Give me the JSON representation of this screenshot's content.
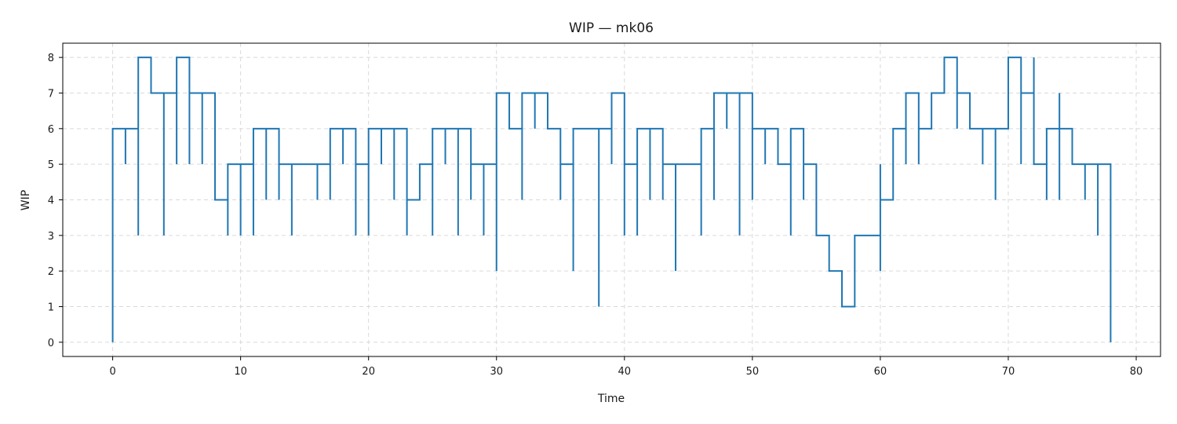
{
  "chart_data": {
    "type": "line",
    "step": "post",
    "title": "WIP — mk06",
    "xlabel": "Time",
    "ylabel": "WIP",
    "xlim": [
      -3.9,
      81.9
    ],
    "ylim": [
      -0.4,
      8.4
    ],
    "xticks": [
      0,
      10,
      20,
      30,
      40,
      50,
      60,
      70,
      80
    ],
    "yticks": [
      0,
      1,
      2,
      3,
      4,
      5,
      6,
      7,
      8
    ],
    "grid": true,
    "grid_style": "dashed",
    "line_color": "#1f77b4",
    "series": [
      {
        "name": "",
        "points": [
          [
            0,
            0
          ],
          [
            0,
            6
          ],
          [
            1,
            6
          ],
          [
            1,
            5
          ],
          [
            1,
            6
          ],
          [
            2,
            6
          ],
          [
            2,
            3
          ],
          [
            2,
            8
          ],
          [
            3,
            8
          ],
          [
            3,
            7
          ],
          [
            4,
            7
          ],
          [
            4,
            3
          ],
          [
            4,
            7
          ],
          [
            5,
            7
          ],
          [
            5,
            5
          ],
          [
            5,
            8
          ],
          [
            6,
            8
          ],
          [
            6,
            5
          ],
          [
            6,
            7
          ],
          [
            7,
            7
          ],
          [
            7,
            5
          ],
          [
            7,
            7
          ],
          [
            8,
            7
          ],
          [
            8,
            4
          ],
          [
            9,
            4
          ],
          [
            9,
            3
          ],
          [
            9,
            5
          ],
          [
            10,
            5
          ],
          [
            10,
            3
          ],
          [
            10,
            5
          ],
          [
            11,
            5
          ],
          [
            11,
            3
          ],
          [
            11,
            6
          ],
          [
            12,
            6
          ],
          [
            12,
            4
          ],
          [
            12,
            6
          ],
          [
            13,
            6
          ],
          [
            13,
            4
          ],
          [
            13,
            5
          ],
          [
            14,
            5
          ],
          [
            14,
            3
          ],
          [
            14,
            5
          ],
          [
            16,
            5
          ],
          [
            16,
            4
          ],
          [
            16,
            5
          ],
          [
            17,
            5
          ],
          [
            17,
            4
          ],
          [
            17,
            6
          ],
          [
            18,
            6
          ],
          [
            18,
            5
          ],
          [
            18,
            6
          ],
          [
            19,
            6
          ],
          [
            19,
            3
          ],
          [
            19,
            5
          ],
          [
            20,
            5
          ],
          [
            20,
            3
          ],
          [
            20,
            6
          ],
          [
            21,
            6
          ],
          [
            21,
            5
          ],
          [
            21,
            6
          ],
          [
            22,
            6
          ],
          [
            22,
            4
          ],
          [
            22,
            6
          ],
          [
            23,
            6
          ],
          [
            23,
            3
          ],
          [
            23,
            4
          ],
          [
            24,
            4
          ],
          [
            24,
            5
          ],
          [
            25,
            5
          ],
          [
            25,
            3
          ],
          [
            25,
            6
          ],
          [
            26,
            6
          ],
          [
            26,
            5
          ],
          [
            26,
            6
          ],
          [
            27,
            6
          ],
          [
            27,
            3
          ],
          [
            27,
            6
          ],
          [
            28,
            6
          ],
          [
            28,
            4
          ],
          [
            28,
            5
          ],
          [
            29,
            5
          ],
          [
            29,
            3
          ],
          [
            29,
            5
          ],
          [
            30,
            5
          ],
          [
            30,
            2
          ],
          [
            30,
            7
          ],
          [
            31,
            7
          ],
          [
            31,
            6
          ],
          [
            32,
            6
          ],
          [
            32,
            4
          ],
          [
            32,
            7
          ],
          [
            33,
            7
          ],
          [
            33,
            6
          ],
          [
            33,
            7
          ],
          [
            34,
            7
          ],
          [
            34,
            6
          ],
          [
            35,
            6
          ],
          [
            35,
            4
          ],
          [
            35,
            5
          ],
          [
            36,
            5
          ],
          [
            36,
            2
          ],
          [
            36,
            6
          ],
          [
            38,
            6
          ],
          [
            38,
            1
          ],
          [
            38,
            6
          ],
          [
            39,
            6
          ],
          [
            39,
            5
          ],
          [
            39,
            7
          ],
          [
            40,
            7
          ],
          [
            40,
            3
          ],
          [
            40,
            5
          ],
          [
            41,
            5
          ],
          [
            41,
            3
          ],
          [
            41,
            6
          ],
          [
            42,
            6
          ],
          [
            42,
            4
          ],
          [
            42,
            6
          ],
          [
            43,
            6
          ],
          [
            43,
            4
          ],
          [
            43,
            5
          ],
          [
            44,
            5
          ],
          [
            44,
            2
          ],
          [
            44,
            5
          ],
          [
            46,
            5
          ],
          [
            46,
            3
          ],
          [
            46,
            6
          ],
          [
            47,
            6
          ],
          [
            47,
            4
          ],
          [
            47,
            7
          ],
          [
            48,
            7
          ],
          [
            48,
            6
          ],
          [
            48,
            7
          ],
          [
            49,
            7
          ],
          [
            49,
            3
          ],
          [
            49,
            7
          ],
          [
            50,
            7
          ],
          [
            50,
            4
          ],
          [
            50,
            6
          ],
          [
            51,
            6
          ],
          [
            51,
            5
          ],
          [
            51,
            6
          ],
          [
            52,
            6
          ],
          [
            52,
            5
          ],
          [
            53,
            5
          ],
          [
            53,
            3
          ],
          [
            53,
            6
          ],
          [
            54,
            6
          ],
          [
            54,
            4
          ],
          [
            54,
            5
          ],
          [
            55,
            5
          ],
          [
            55,
            3
          ],
          [
            56,
            3
          ],
          [
            56,
            2
          ],
          [
            57,
            2
          ],
          [
            57,
            1
          ],
          [
            58,
            1
          ],
          [
            58,
            3
          ],
          [
            60,
            3
          ],
          [
            60,
            2
          ],
          [
            60,
            5
          ],
          [
            60,
            4
          ],
          [
            61,
            4
          ],
          [
            61,
            6
          ],
          [
            62,
            6
          ],
          [
            62,
            5
          ],
          [
            62,
            7
          ],
          [
            63,
            7
          ],
          [
            63,
            5
          ],
          [
            63,
            6
          ],
          [
            64,
            6
          ],
          [
            64,
            7
          ],
          [
            65,
            7
          ],
          [
            65,
            8
          ],
          [
            66,
            8
          ],
          [
            66,
            6
          ],
          [
            66,
            7
          ],
          [
            67,
            7
          ],
          [
            67,
            6
          ],
          [
            68,
            6
          ],
          [
            68,
            5
          ],
          [
            68,
            6
          ],
          [
            69,
            6
          ],
          [
            69,
            4
          ],
          [
            69,
            6
          ],
          [
            70,
            6
          ],
          [
            70,
            8
          ],
          [
            71,
            8
          ],
          [
            71,
            5
          ],
          [
            71,
            7
          ],
          [
            72,
            7
          ],
          [
            72,
            8
          ],
          [
            72,
            5
          ],
          [
            73,
            5
          ],
          [
            73,
            4
          ],
          [
            73,
            6
          ],
          [
            74,
            6
          ],
          [
            74,
            4
          ],
          [
            74,
            7
          ],
          [
            74,
            6
          ],
          [
            75,
            6
          ],
          [
            75,
            5
          ],
          [
            76,
            5
          ],
          [
            76,
            4
          ],
          [
            76,
            5
          ],
          [
            77,
            5
          ],
          [
            77,
            3
          ],
          [
            77,
            5
          ],
          [
            78,
            5
          ],
          [
            78,
            0
          ]
        ]
      }
    ]
  }
}
